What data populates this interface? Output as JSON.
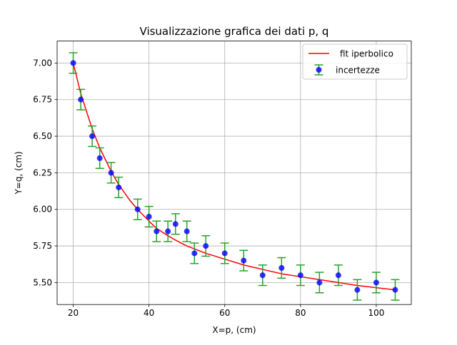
{
  "chart_data": {
    "type": "scatter",
    "title": "Visualizzazione grafica dei dati p, q",
    "xlabel": "X=p, (cm)",
    "ylabel": "Y=q, (cm)",
    "xlim": [
      15.75,
      109.25
    ],
    "ylim": [
      5.35,
      7.15
    ],
    "xticks": [
      20,
      40,
      60,
      80,
      100
    ],
    "yticks": [
      5.5,
      5.75,
      6.0,
      6.25,
      6.5,
      6.75,
      7.0
    ],
    "xtick_labels": [
      "20",
      "40",
      "60",
      "80",
      "100"
    ],
    "ytick_labels": [
      "5.50",
      "5.75",
      "6.00",
      "6.25",
      "6.50",
      "6.75",
      "7.00"
    ],
    "grid": true,
    "legend_position": "upper right",
    "series": [
      {
        "name": " fit iperbolico",
        "kind": "line",
        "color": "#ff0000",
        "x": [
          20,
          22,
          25,
          27,
          30,
          32,
          35,
          37,
          40,
          42,
          45,
          47,
          50,
          52,
          55,
          60,
          65,
          70,
          75,
          80,
          85,
          90,
          95,
          100,
          105
        ],
        "y": [
          7.0,
          6.79,
          6.55,
          6.42,
          6.26,
          6.17,
          6.06,
          6.0,
          5.92,
          5.87,
          5.82,
          5.79,
          5.75,
          5.73,
          5.7,
          5.66,
          5.62,
          5.59,
          5.56,
          5.54,
          5.52,
          5.5,
          5.48,
          5.465,
          5.45
        ]
      },
      {
        "name": "incertezze",
        "kind": "errorbar",
        "marker_color": "#0000ff",
        "errorbar_color": "#2ca02c",
        "x": [
          20,
          22,
          25,
          27,
          30,
          32,
          37,
          40,
          42,
          45,
          47,
          50,
          52,
          55,
          60,
          65,
          70,
          75,
          80,
          85,
          90,
          95,
          100,
          105
        ],
        "y": [
          7.0,
          6.75,
          6.5,
          6.35,
          6.25,
          6.15,
          6.0,
          5.95,
          5.85,
          5.85,
          5.9,
          5.85,
          5.7,
          5.75,
          5.7,
          5.65,
          5.55,
          5.6,
          5.55,
          5.5,
          5.55,
          5.45,
          5.5,
          5.45
        ],
        "yerr": 0.07
      }
    ]
  }
}
